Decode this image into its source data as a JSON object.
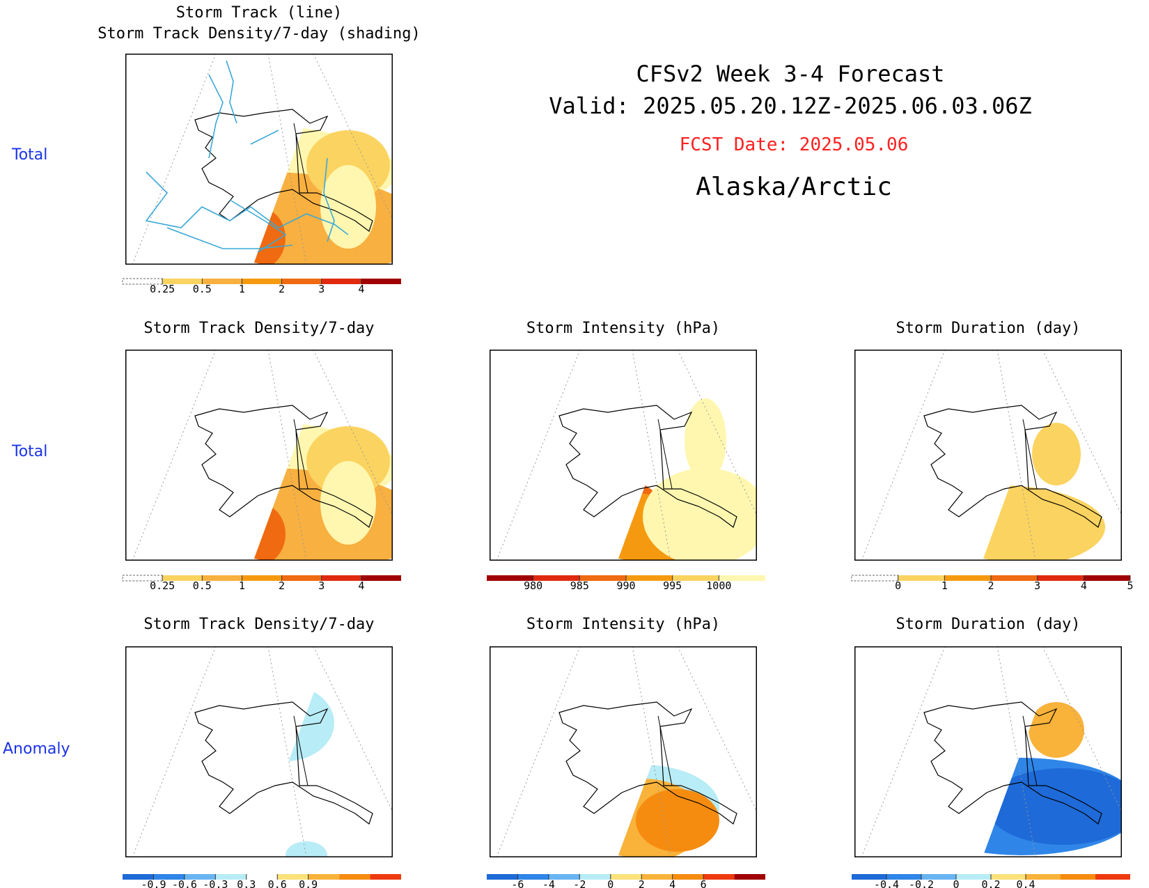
{
  "header": {
    "title_line1": "CFSv2 Week 3-4 Forecast",
    "title_line2": "Valid: 2025.05.20.12Z-2025.06.03.06Z",
    "fcst_date": "FCST Date: 2025.05.06",
    "region": "Alaska/Arctic"
  },
  "row_labels": [
    "Total",
    "Total",
    "Anomaly"
  ],
  "colors": {
    "row_label": "#1a33e6",
    "fcst_date": "#ff2020",
    "track_line": "#3aa8d8",
    "land_outline": "#000000"
  },
  "chart_data": [
    {
      "type": "heatmap",
      "id": "track_total",
      "title": [
        "Storm Track (line)",
        "Storm Track Density/7-day (shading)"
      ],
      "colorbar": {
        "ticks": [
          "0.25",
          "0.5",
          "1",
          "2",
          "3",
          "4"
        ],
        "colors": [
          "#fff7b0",
          "#fbd360",
          "#f8b040",
          "#f59a10",
          "#ef6a10",
          "#e02a10",
          "#a00000"
        ],
        "open_low": true
      },
      "overlay": "storm tracks"
    },
    {
      "type": "heatmap",
      "id": "density_total",
      "title": [
        "Storm Track Density/7-day"
      ],
      "colorbar": {
        "ticks": [
          "0.25",
          "0.5",
          "1",
          "2",
          "3",
          "4"
        ],
        "colors": [
          "#fff7b0",
          "#fbd360",
          "#f8b040",
          "#f59a10",
          "#ef6a10",
          "#e02a10",
          "#a00000"
        ],
        "open_low": true
      }
    },
    {
      "type": "heatmap",
      "id": "intensity_total",
      "title": [
        "Storm Intensity (hPa)"
      ],
      "colorbar": {
        "ticks": [
          "980",
          "985",
          "990",
          "995",
          "1000"
        ],
        "colors": [
          "#a00000",
          "#e02a10",
          "#ef6a10",
          "#f59a10",
          "#fbd360",
          "#fff7b0"
        ],
        "open_high": true
      }
    },
    {
      "type": "heatmap",
      "id": "duration_total",
      "title": [
        "Storm Duration (day)"
      ],
      "colorbar": {
        "ticks": [
          "0",
          "1",
          "2",
          "3",
          "4",
          "5"
        ],
        "colors": [
          "#fff7b0",
          "#fbd360",
          "#f59a10",
          "#ef6a10",
          "#e02a10",
          "#a00000"
        ],
        "open_low": true
      }
    },
    {
      "type": "heatmap",
      "id": "density_anom",
      "title": [
        "Storm Track Density/7-day"
      ],
      "colorbar": {
        "ticks": [
          "-0.9",
          "-0.6",
          "-0.3",
          "0.3",
          "0.6",
          "0.9"
        ],
        "colors": [
          "#1e6ad8",
          "#2f86e8",
          "#6ab4f2",
          "#b8ecf6",
          "#ffffff",
          "#fbe27a",
          "#f9b23a",
          "#f58c10",
          "#ef3a10"
        ]
      }
    },
    {
      "type": "heatmap",
      "id": "intensity_anom",
      "title": [
        "Storm Intensity (hPa)"
      ],
      "colorbar": {
        "ticks": [
          "-6",
          "-4",
          "-2",
          "0",
          "2",
          "4",
          "6"
        ],
        "colors": [
          "#1e6ad8",
          "#2f86e8",
          "#6ab4f2",
          "#b8ecf6",
          "#fbe27a",
          "#f9b23a",
          "#f58c10",
          "#ef3a10",
          "#a00000"
        ]
      }
    },
    {
      "type": "heatmap",
      "id": "duration_anom",
      "title": [
        "Storm Duration (day)"
      ],
      "colorbar": {
        "ticks": [
          "-0.4",
          "-0.2",
          "0",
          "0.2",
          "0.4"
        ],
        "colors": [
          "#1e6ad8",
          "#2f86e8",
          "#6ab4f2",
          "#b8ecf6",
          "#fbe27a",
          "#f9b23a",
          "#f58c10",
          "#ef3a10"
        ]
      }
    }
  ]
}
